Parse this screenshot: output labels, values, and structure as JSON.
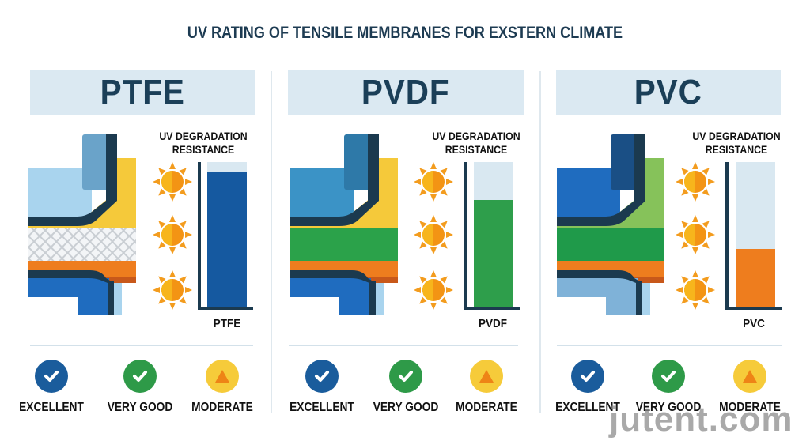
{
  "title": "UV RATING OF TENSILE MEMBRANES FOR EXSTERN CLIMATE",
  "common": {
    "uv_label_line1": "UV DEGRADATION",
    "uv_label_line2": "RESISTANCE",
    "sun_icon": "sun-icon",
    "sun_colors": {
      "left": "#f7b51c",
      "right": "#f39414",
      "rays": "#f39c1e"
    }
  },
  "panels": [
    {
      "name": "PTFE",
      "bar_label": "PTFE",
      "bar_color": "#1559a0",
      "bar_percent": 93,
      "layers": {
        "top_outer": "#a9d4ee",
        "top_inner": "#6aa3c9",
        "coat": "#f5c93a",
        "core": "mesh",
        "bottom_band": "#ee7d1e",
        "bottom_outer": "#1f6cbf",
        "bottom_inner": "#1f6cbf",
        "edge": "#1b3a4f"
      },
      "ratings": [
        {
          "label": "EXCELLENT",
          "icon": "check-icon",
          "color": "#1a5c9c"
        },
        {
          "label": "VERY GOOD",
          "icon": "check-icon",
          "color": "#2e9a48"
        },
        {
          "label": "MODERATE",
          "icon": "warning-triangle-icon",
          "color": "#f6cb3a"
        }
      ]
    },
    {
      "name": "PVDF",
      "bar_label": "PVDF",
      "bar_color": "#2e9e4b",
      "bar_percent": 74,
      "layers": {
        "top_outer": "#3b93c6",
        "top_inner": "#2e79a8",
        "coat": "#f5c93a",
        "core": "#2ba24a",
        "bottom_band": "#ee7d1e",
        "bottom_outer": "#1f6cbf",
        "bottom_inner": "#1f6cbf",
        "edge": "#1b3a4f"
      },
      "ratings": [
        {
          "label": "EXCELLENT",
          "icon": "check-icon",
          "color": "#1a5c9c"
        },
        {
          "label": "VERY GOOD",
          "icon": "check-icon",
          "color": "#2e9a48"
        },
        {
          "label": "MODERATE",
          "icon": "warning-triangle-icon",
          "color": "#f6cb3a"
        }
      ]
    },
    {
      "name": "PVC",
      "bar_label": "PVC",
      "bar_color": "#ee7d1e",
      "bar_percent": 40,
      "layers": {
        "top_outer": "#1f6cbf",
        "top_inner": "#1a4f85",
        "coat": "#86c25a",
        "core": "#1f9a4a",
        "bottom_band": "#ee7d1e",
        "bottom_outer": "#7fb2d8",
        "bottom_inner": "#7fb2d8",
        "edge": "#1b3a4f"
      },
      "ratings": [
        {
          "label": "EXCELLENT",
          "icon": "check-icon",
          "color": "#1a5c9c"
        },
        {
          "label": "VERY GOOD",
          "icon": "check-icon",
          "color": "#2e9a48"
        },
        {
          "label": "MODERATE",
          "icon": "warning-triangle-icon",
          "color": "#f6cb3a"
        }
      ]
    }
  ],
  "watermark": "jutent.com",
  "chart_data": [
    {
      "type": "bar",
      "title": "UV DEGRADATION RESISTANCE",
      "categories": [
        "PTFE"
      ],
      "values": [
        93
      ],
      "ylim": [
        0,
        100
      ],
      "xlabel": "",
      "ylabel": "",
      "color": "#1559a0"
    },
    {
      "type": "bar",
      "title": "UV DEGRADATION RESISTANCE",
      "categories": [
        "PVDF"
      ],
      "values": [
        74
      ],
      "ylim": [
        0,
        100
      ],
      "xlabel": "",
      "ylabel": "",
      "color": "#2e9e4b"
    },
    {
      "type": "bar",
      "title": "UV DEGRADATION RESISTANCE",
      "categories": [
        "PVC"
      ],
      "values": [
        40
      ],
      "ylim": [
        0,
        100
      ],
      "xlabel": "",
      "ylabel": "",
      "color": "#ee7d1e"
    }
  ]
}
